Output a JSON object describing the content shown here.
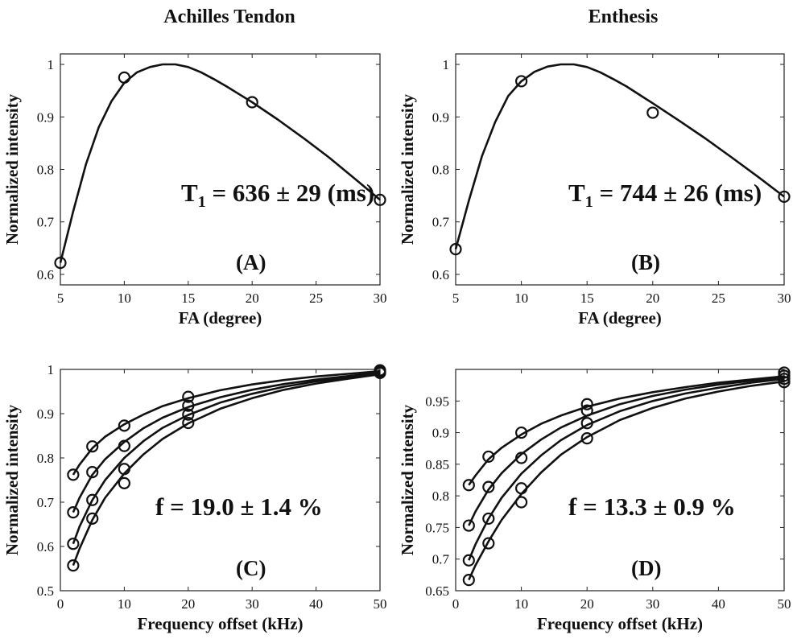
{
  "titles": {
    "left": "Achilles Tendon",
    "right": "Enthesis"
  },
  "chart_data": [
    {
      "type": "scatter",
      "panel_label": "(A)",
      "annotation": {
        "main": "T",
        "sub": "1",
        "rest": " = 636 ± 29 (ms)"
      },
      "xlabel": "FA (degree)",
      "ylabel": "Normalized intensity",
      "xlim": [
        5,
        30
      ],
      "ylim": [
        0.58,
        1.02
      ],
      "xticks": [
        "5",
        "10",
        "15",
        "20",
        "25",
        "30"
      ],
      "yticks": [
        "0.6",
        "0.7",
        "0.8",
        "0.9",
        "1"
      ],
      "grid": false,
      "series": [
        {
          "points": [
            [
              5,
              0.622
            ],
            [
              10,
              0.975
            ],
            [
              20,
              0.928
            ],
            [
              30,
              0.742
            ]
          ],
          "curve": [
            [
              5,
              0.622
            ],
            [
              6,
              0.72
            ],
            [
              7,
              0.81
            ],
            [
              8,
              0.88
            ],
            [
              9,
              0.93
            ],
            [
              10,
              0.965
            ],
            [
              11,
              0.985
            ],
            [
              12,
              0.995
            ],
            [
              13,
              1.0
            ],
            [
              14,
              1.0
            ],
            [
              15,
              0.995
            ],
            [
              16,
              0.985
            ],
            [
              17,
              0.972
            ],
            [
              18,
              0.958
            ],
            [
              19,
              0.943
            ],
            [
              20,
              0.928
            ],
            [
              22,
              0.895
            ],
            [
              24,
              0.86
            ],
            [
              26,
              0.823
            ],
            [
              28,
              0.783
            ],
            [
              30,
              0.742
            ]
          ]
        }
      ]
    },
    {
      "type": "scatter",
      "panel_label": "(B)",
      "annotation": {
        "main": "T",
        "sub": "1",
        "rest": " = 744 ± 26 (ms)"
      },
      "xlabel": "FA (degree)",
      "ylabel": "Normalized intensity",
      "xlim": [
        5,
        30
      ],
      "ylim": [
        0.58,
        1.02
      ],
      "xticks": [
        "5",
        "10",
        "15",
        "20",
        "25",
        "30"
      ],
      "yticks": [
        "0.6",
        "0.7",
        "0.8",
        "0.9",
        "1"
      ],
      "grid": false,
      "series": [
        {
          "points": [
            [
              5,
              0.648
            ],
            [
              10,
              0.968
            ],
            [
              20,
              0.908
            ],
            [
              30,
              0.748
            ]
          ],
          "curve": [
            [
              5,
              0.648
            ],
            [
              6,
              0.74
            ],
            [
              7,
              0.825
            ],
            [
              8,
              0.89
            ],
            [
              9,
              0.94
            ],
            [
              10,
              0.968
            ],
            [
              11,
              0.986
            ],
            [
              12,
              0.996
            ],
            [
              13,
              1.0
            ],
            [
              14,
              1.0
            ],
            [
              15,
              0.995
            ],
            [
              16,
              0.985
            ],
            [
              17,
              0.972
            ],
            [
              18,
              0.958
            ],
            [
              19,
              0.942
            ],
            [
              20,
              0.926
            ],
            [
              22,
              0.893
            ],
            [
              24,
              0.859
            ],
            [
              26,
              0.823
            ],
            [
              28,
              0.786
            ],
            [
              30,
              0.748
            ]
          ]
        }
      ]
    },
    {
      "type": "scatter",
      "panel_label": "(C)",
      "annotation": {
        "main": "",
        "sub": "",
        "rest": "f = 19.0 ± 1.4 %"
      },
      "xlabel": "Frequency offset (kHz)",
      "ylabel": "Normalized intensity",
      "xlim": [
        0,
        50
      ],
      "ylim": [
        0.5,
        1.0
      ],
      "xticks": [
        "0",
        "10",
        "20",
        "30",
        "40",
        "50"
      ],
      "yticks": [
        "0.5",
        "0.6",
        "0.7",
        "0.8",
        "0.9",
        "1"
      ],
      "grid": false,
      "series": [
        {
          "points": [
            [
              2,
              0.762
            ],
            [
              5,
              0.826
            ],
            [
              10,
              0.873
            ],
            [
              20,
              0.938
            ],
            [
              50,
              0.998
            ]
          ],
          "curve": [
            [
              2,
              0.762
            ],
            [
              3,
              0.785
            ],
            [
              5,
              0.822
            ],
            [
              7,
              0.848
            ],
            [
              10,
              0.876
            ],
            [
              13,
              0.898
            ],
            [
              16,
              0.917
            ],
            [
              20,
              0.935
            ],
            [
              25,
              0.953
            ],
            [
              30,
              0.966
            ],
            [
              35,
              0.976
            ],
            [
              40,
              0.984
            ],
            [
              45,
              0.99
            ],
            [
              50,
              0.996
            ]
          ]
        },
        {
          "points": [
            [
              2,
              0.677
            ],
            [
              5,
              0.768
            ],
            [
              10,
              0.827
            ],
            [
              20,
              0.918
            ],
            [
              50,
              0.996
            ]
          ],
          "curve": [
            [
              2,
              0.677
            ],
            [
              3,
              0.71
            ],
            [
              5,
              0.762
            ],
            [
              7,
              0.797
            ],
            [
              10,
              0.836
            ],
            [
              13,
              0.867
            ],
            [
              16,
              0.891
            ],
            [
              20,
              0.915
            ],
            [
              25,
              0.937
            ],
            [
              30,
              0.954
            ],
            [
              35,
              0.967
            ],
            [
              40,
              0.977
            ],
            [
              45,
              0.985
            ],
            [
              50,
              0.993
            ]
          ]
        },
        {
          "points": [
            [
              2,
              0.606
            ],
            [
              5,
              0.705
            ],
            [
              10,
              0.775
            ],
            [
              20,
              0.898
            ],
            [
              50,
              0.994
            ]
          ],
          "curve": [
            [
              2,
              0.606
            ],
            [
              3,
              0.645
            ],
            [
              5,
              0.705
            ],
            [
              7,
              0.75
            ],
            [
              10,
              0.8
            ],
            [
              13,
              0.838
            ],
            [
              16,
              0.868
            ],
            [
              20,
              0.897
            ],
            [
              25,
              0.925
            ],
            [
              30,
              0.945
            ],
            [
              35,
              0.961
            ],
            [
              40,
              0.973
            ],
            [
              45,
              0.982
            ],
            [
              50,
              0.991
            ]
          ]
        },
        {
          "points": [
            [
              2,
              0.557
            ],
            [
              5,
              0.663
            ],
            [
              10,
              0.743
            ],
            [
              20,
              0.879
            ],
            [
              50,
              0.992
            ]
          ],
          "curve": [
            [
              2,
              0.557
            ],
            [
              3,
              0.595
            ],
            [
              5,
              0.66
            ],
            [
              7,
              0.71
            ],
            [
              10,
              0.765
            ],
            [
              13,
              0.808
            ],
            [
              16,
              0.843
            ],
            [
              20,
              0.878
            ],
            [
              25,
              0.911
            ],
            [
              30,
              0.935
            ],
            [
              35,
              0.954
            ],
            [
              40,
              0.968
            ],
            [
              45,
              0.979
            ],
            [
              50,
              0.989
            ]
          ]
        }
      ]
    },
    {
      "type": "scatter",
      "panel_label": "(D)",
      "annotation": {
        "main": "",
        "sub": "",
        "rest": "f = 13.3 ± 0.9 %"
      },
      "xlabel": "Frequency offset (kHz)",
      "ylabel": "Normalized intensity",
      "xlim": [
        0,
        50
      ],
      "ylim": [
        0.65,
        1.0
      ],
      "xticks": [
        "0",
        "10",
        "20",
        "30",
        "40",
        "50"
      ],
      "yticks": [
        "0.65",
        "0.7",
        "0.75",
        "0.8",
        "0.85",
        "0.9",
        "0.95"
      ],
      "grid": false,
      "series": [
        {
          "points": [
            [
              2,
              0.817
            ],
            [
              5,
              0.862
            ],
            [
              10,
              0.9
            ],
            [
              20,
              0.945
            ],
            [
              50,
              0.995
            ]
          ],
          "curve": [
            [
              2,
              0.817
            ],
            [
              3,
              0.832
            ],
            [
              5,
              0.858
            ],
            [
              7,
              0.876
            ],
            [
              10,
              0.897
            ],
            [
              13,
              0.914
            ],
            [
              16,
              0.927
            ],
            [
              20,
              0.941
            ],
            [
              25,
              0.954
            ],
            [
              30,
              0.964
            ],
            [
              35,
              0.972
            ],
            [
              40,
              0.979
            ],
            [
              45,
              0.984
            ],
            [
              50,
              0.989
            ]
          ]
        },
        {
          "points": [
            [
              2,
              0.753
            ],
            [
              5,
              0.814
            ],
            [
              10,
              0.86
            ],
            [
              20,
              0.935
            ],
            [
              50,
              0.99
            ]
          ],
          "curve": [
            [
              2,
              0.753
            ],
            [
              3,
              0.775
            ],
            [
              5,
              0.81
            ],
            [
              7,
              0.836
            ],
            [
              10,
              0.866
            ],
            [
              13,
              0.889
            ],
            [
              16,
              0.908
            ],
            [
              20,
              0.927
            ],
            [
              25,
              0.945
            ],
            [
              30,
              0.958
            ],
            [
              35,
              0.968
            ],
            [
              40,
              0.976
            ],
            [
              45,
              0.982
            ],
            [
              50,
              0.988
            ]
          ]
        },
        {
          "points": [
            [
              2,
              0.698
            ],
            [
              5,
              0.764
            ],
            [
              10,
              0.812
            ],
            [
              20,
              0.915
            ],
            [
              50,
              0.985
            ]
          ],
          "curve": [
            [
              2,
              0.698
            ],
            [
              3,
              0.723
            ],
            [
              5,
              0.764
            ],
            [
              7,
              0.797
            ],
            [
              10,
              0.835
            ],
            [
              13,
              0.864
            ],
            [
              16,
              0.888
            ],
            [
              20,
              0.912
            ],
            [
              25,
              0.934
            ],
            [
              30,
              0.95
            ],
            [
              35,
              0.962
            ],
            [
              40,
              0.971
            ],
            [
              45,
              0.979
            ],
            [
              50,
              0.985
            ]
          ]
        },
        {
          "points": [
            [
              2,
              0.667
            ],
            [
              5,
              0.725
            ],
            [
              10,
              0.79
            ],
            [
              20,
              0.891
            ],
            [
              50,
              0.98
            ]
          ],
          "curve": [
            [
              2,
              0.667
            ],
            [
              3,
              0.69
            ],
            [
              5,
              0.728
            ],
            [
              7,
              0.762
            ],
            [
              10,
              0.803
            ],
            [
              13,
              0.837
            ],
            [
              16,
              0.865
            ],
            [
              20,
              0.893
            ],
            [
              25,
              0.92
            ],
            [
              30,
              0.939
            ],
            [
              35,
              0.954
            ],
            [
              40,
              0.965
            ],
            [
              45,
              0.974
            ],
            [
              50,
              0.981
            ]
          ]
        }
      ]
    }
  ]
}
